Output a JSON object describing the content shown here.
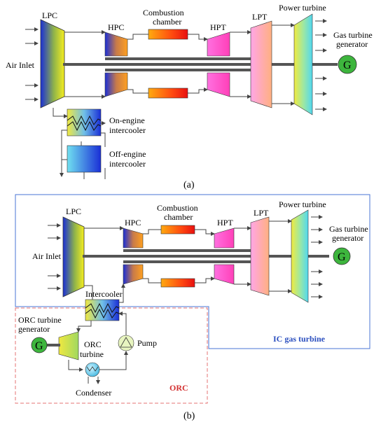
{
  "diagram_a": {
    "labels": {
      "lpc": "LPC",
      "hpc": "HPC",
      "combustion": [
        "Combustion",
        "chamber"
      ],
      "hpt": "HPT",
      "lpt": "LPT",
      "power_turbine": "Power turbine",
      "gas_turbine_generator": [
        "Gas turbine",
        "generator"
      ],
      "air_inlet": "Air Inlet",
      "on_engine": [
        "On-engine",
        "intercooler"
      ],
      "off_engine": [
        "Off-engine",
        "intercooler"
      ],
      "generator_symbol": "G"
    },
    "caption": "(a)"
  },
  "diagram_b": {
    "labels": {
      "lpc": "LPC",
      "hpc": "HPC",
      "combustion": [
        "Combustion",
        "chamber"
      ],
      "hpt": "HPT",
      "lpt": "LPT",
      "power_turbine": "Power turbine",
      "gas_turbine_generator": [
        "Gas turbine",
        "generator"
      ],
      "air_inlet": "Air Inlet",
      "intercooler": "Intercooler",
      "orc_generator": [
        "ORC turbine",
        "generator"
      ],
      "orc_turbine": [
        "ORC",
        "turbine"
      ],
      "pump": "Pump",
      "condenser": "Condenser",
      "ic_gas_turbine": "IC gas turbine",
      "orc": "ORC",
      "generator_symbol": "G",
      "orc_generator_symbol": "G"
    },
    "caption": "(b)"
  },
  "colors": {
    "ic_box": "#4a74d6",
    "orc_box": "#e57373",
    "ic_text": "#2b4fbf",
    "orc_text": "#d32f2f",
    "generator": "#3db53d"
  }
}
